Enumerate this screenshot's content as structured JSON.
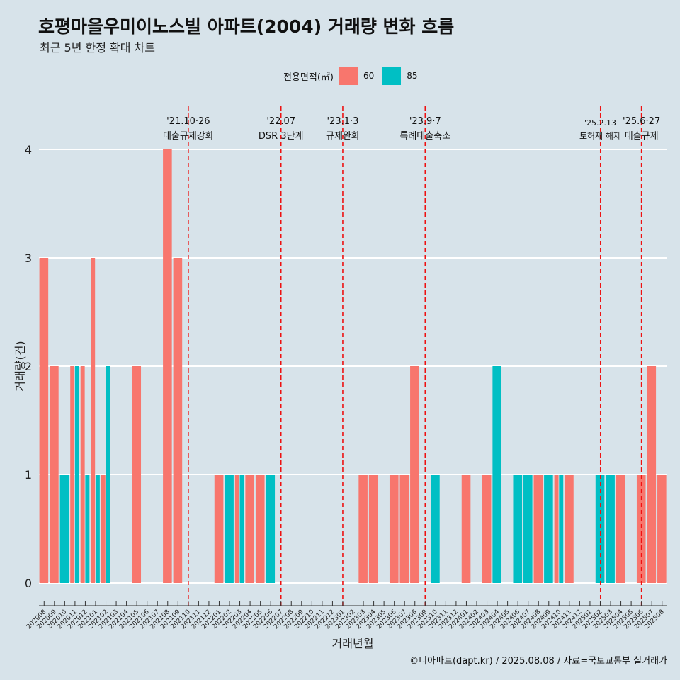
{
  "header": {
    "title": "호평마을우미이노스빌 아파트(2004) 거래량 변화 흐름",
    "subtitle": "최근 5년 한정 확대 차트"
  },
  "legend": {
    "title": "전용면적(㎡)",
    "items": [
      {
        "label": "60",
        "color": "#F8766D"
      },
      {
        "label": "85",
        "color": "#00BFC4"
      }
    ]
  },
  "footer": {
    "credit": "©디아파트(dapt.kr) / 2025.08.08 / 자료=국토교통부 실거래가"
  },
  "chart_data": {
    "type": "bar",
    "xlabel": "거래년월",
    "ylabel": "거래량(건)",
    "ylim": [
      0,
      4
    ],
    "yticks": [
      0,
      1,
      2,
      3,
      4
    ],
    "grid": true,
    "legend_position": "top",
    "categories": [
      "202008",
      "202009",
      "202010",
      "202011",
      "202012",
      "202101",
      "202102",
      "202103",
      "202104",
      "202105",
      "202106",
      "202107",
      "202108",
      "202109",
      "202110",
      "202111",
      "202112",
      "202201",
      "202202",
      "202203",
      "202204",
      "202205",
      "202206",
      "202207",
      "202208",
      "202209",
      "202210",
      "202211",
      "202212",
      "202301",
      "202302",
      "202303",
      "202304",
      "202305",
      "202306",
      "202307",
      "202308",
      "202309",
      "202310",
      "202311",
      "202312",
      "202401",
      "202402",
      "202403",
      "202404",
      "202405",
      "202406",
      "202407",
      "202408",
      "202409",
      "202410",
      "202411",
      "202412",
      "202501",
      "202502",
      "202503",
      "202504",
      "202505",
      "202506",
      "202507",
      "202508"
    ],
    "series": [
      {
        "name": "60",
        "color": "#F8766D",
        "values": [
          3,
          2,
          0,
          2,
          2,
          3,
          1,
          0,
          0,
          2,
          0,
          0,
          4,
          3,
          0,
          0,
          0,
          1,
          0,
          1,
          1,
          1,
          0,
          0,
          0,
          0,
          0,
          0,
          0,
          0,
          0,
          1,
          1,
          0,
          1,
          1,
          2,
          0,
          0,
          0,
          0,
          1,
          0,
          1,
          0,
          0,
          0,
          0,
          1,
          0,
          1,
          1,
          0,
          0,
          0,
          0,
          1,
          0,
          1,
          2,
          1
        ]
      },
      {
        "name": "85",
        "color": "#00BFC4",
        "values": [
          0,
          0,
          1,
          2,
          1,
          1,
          2,
          0,
          0,
          0,
          0,
          0,
          0,
          0,
          0,
          0,
          0,
          0,
          1,
          1,
          0,
          0,
          1,
          0,
          0,
          0,
          0,
          0,
          0,
          0,
          0,
          0,
          0,
          0,
          0,
          0,
          0,
          0,
          1,
          0,
          0,
          0,
          0,
          0,
          2,
          0,
          1,
          1,
          0,
          1,
          1,
          0,
          0,
          0,
          1,
          1,
          0,
          0,
          0,
          0,
          0
        ]
      }
    ],
    "annotations": [
      {
        "index": 14,
        "date": "'21.10·26",
        "label": "대출규제강화",
        "style": "bold"
      },
      {
        "index": 23,
        "date": "'22.07",
        "label": "DSR 3단계",
        "style": "bold"
      },
      {
        "index": 29,
        "date": "'23.1·3",
        "label": "규제완화",
        "style": "bold"
      },
      {
        "index": 37,
        "date": "'23.9·7",
        "label": "특례대출축소",
        "style": "bold"
      },
      {
        "index": 54,
        "date": "'25.2.13",
        "label": "토허제 해제",
        "style": "thin"
      },
      {
        "index": 58,
        "date": "'25.6·27",
        "label": "대출규제",
        "style": "bold"
      }
    ]
  }
}
